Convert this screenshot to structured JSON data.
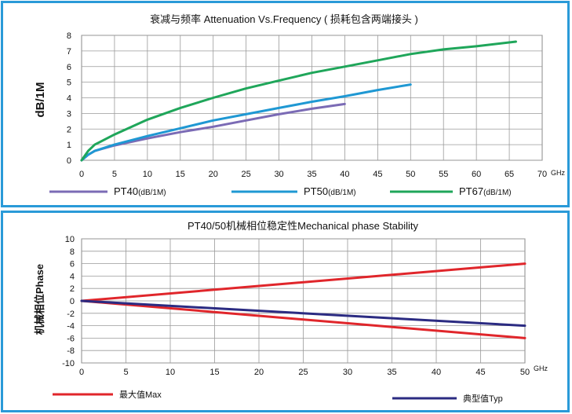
{
  "chart_data": [
    {
      "type": "line",
      "title": "衰减与频率 Attenuation Vs.Frequency ( 损耗包含两端接头 )",
      "ylabel": "dB/1M",
      "x_unit": "GHz",
      "xlim": [
        0,
        70
      ],
      "ylim": [
        0,
        8
      ],
      "x_ticks": [
        0,
        5,
        10,
        15,
        20,
        25,
        30,
        35,
        40,
        45,
        50,
        55,
        60,
        65,
        70
      ],
      "y_ticks": [
        0,
        1,
        2,
        3,
        4,
        5,
        6,
        7,
        8
      ],
      "grid": true,
      "legend_position": "bottom",
      "series": [
        {
          "name": "PT40",
          "legend_unit": "(dB/1M)",
          "color": "#7b6bb5",
          "x": [
            0,
            1,
            2,
            5,
            10,
            15,
            20,
            25,
            30,
            35,
            40
          ],
          "y": [
            0.0,
            0.35,
            0.6,
            0.95,
            1.4,
            1.8,
            2.15,
            2.55,
            2.95,
            3.3,
            3.6
          ]
        },
        {
          "name": "PT50",
          "legend_unit": "(dB/1M)",
          "color": "#1f98d3",
          "x": [
            0,
            1,
            2,
            5,
            10,
            15,
            20,
            25,
            30,
            35,
            40,
            45,
            50
          ],
          "y": [
            0.0,
            0.35,
            0.6,
            1.0,
            1.55,
            2.05,
            2.55,
            2.95,
            3.35,
            3.75,
            4.1,
            4.5,
            4.85
          ]
        },
        {
          "name": "PT67",
          "legend_unit": "(dB/1M)",
          "color": "#1fa65a",
          "x": [
            0,
            1,
            2,
            5,
            10,
            15,
            20,
            25,
            30,
            35,
            40,
            45,
            50,
            55,
            60,
            66
          ],
          "y": [
            0.0,
            0.6,
            1.0,
            1.65,
            2.6,
            3.35,
            4.0,
            4.6,
            5.1,
            5.6,
            6.0,
            6.4,
            6.8,
            7.1,
            7.3,
            7.6
          ]
        }
      ]
    },
    {
      "type": "line",
      "title": "PT40/50机械相位稳定性Mechanical phase Stability",
      "ylabel": "机械相位Phase",
      "x_unit": "GHz",
      "xlim": [
        0,
        50
      ],
      "ylim": [
        -10,
        10
      ],
      "x_ticks": [
        0,
        5,
        10,
        15,
        20,
        25,
        30,
        35,
        40,
        45,
        50
      ],
      "y_ticks": [
        10,
        8,
        6,
        4,
        2,
        0,
        -2,
        -4,
        -6,
        -8,
        -10
      ],
      "grid": true,
      "legend_position": "bottom",
      "series": [
        {
          "name": "最大值Max",
          "color": "#e0262b",
          "x": [
            0,
            50
          ],
          "y": [
            0,
            6
          ]
        },
        {
          "name": "最大值Max",
          "color": "#e0262b",
          "x": [
            0,
            50
          ],
          "y": [
            0,
            -6
          ],
          "in_legend": false
        },
        {
          "name": "典型值Typ",
          "color": "#2b2b82",
          "x": [
            0,
            50
          ],
          "y": [
            0,
            -4
          ]
        }
      ]
    }
  ]
}
